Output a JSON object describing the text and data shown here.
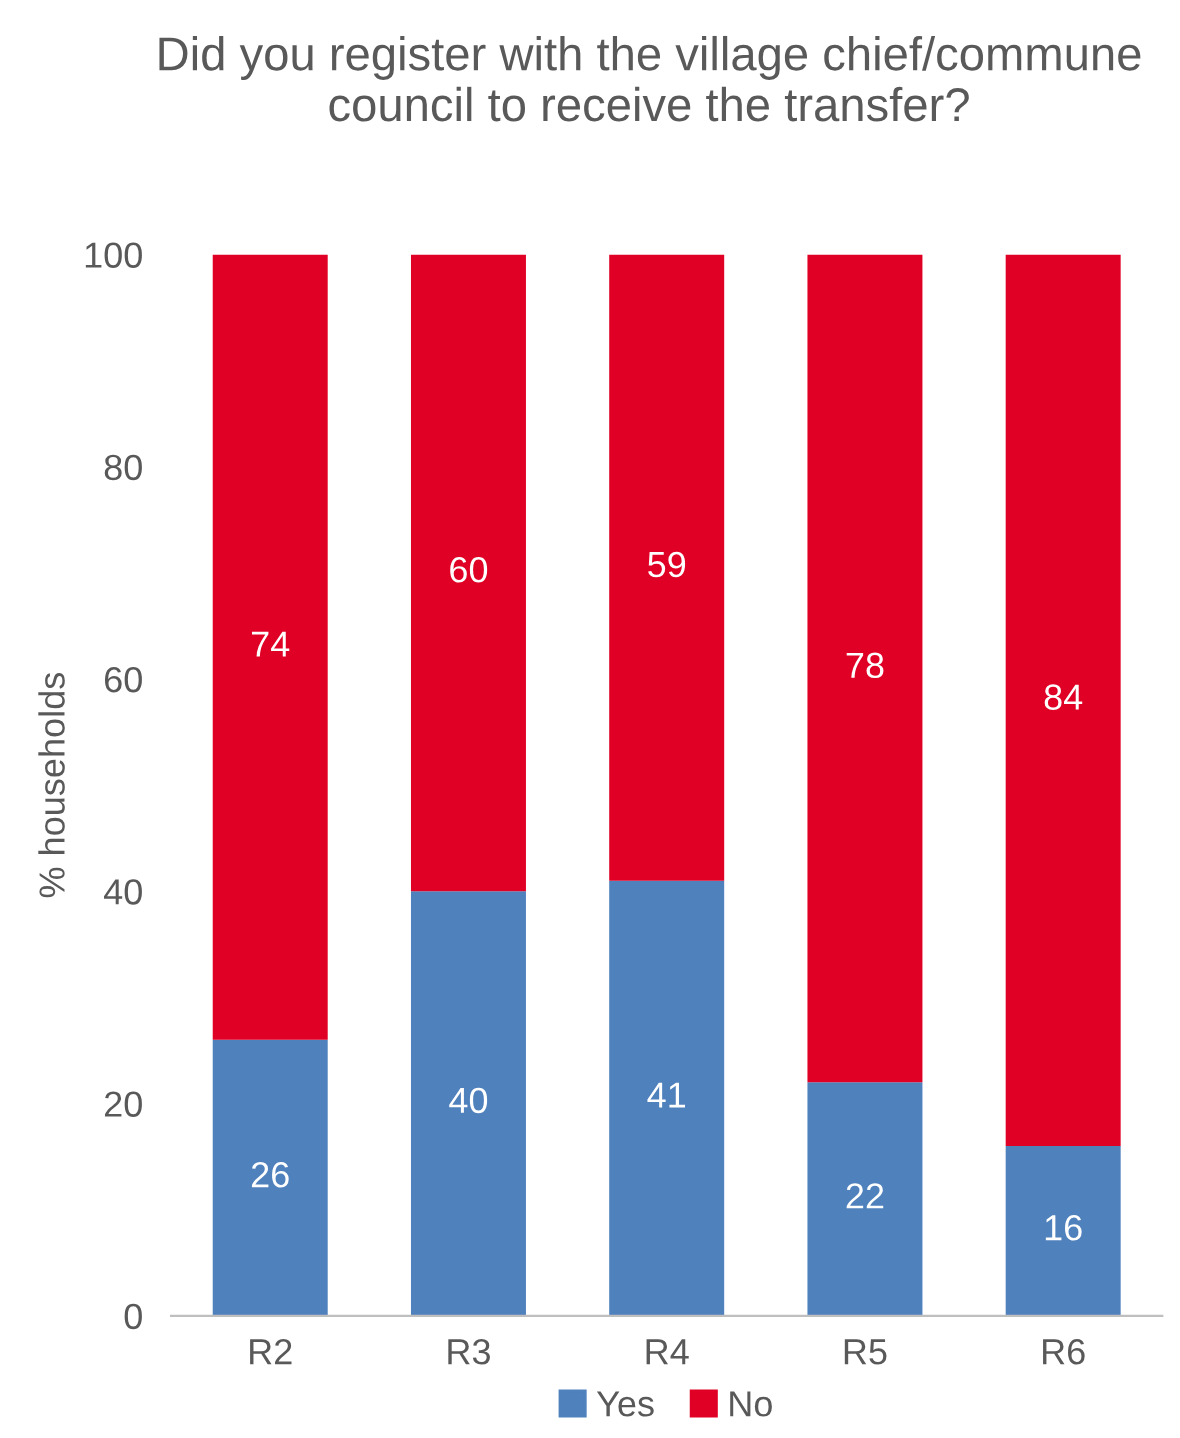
{
  "chart_data": {
    "type": "bar",
    "stacked": true,
    "title": "Did you register with the village chief/commune council to receive the transfer?",
    "ylabel": "% households",
    "categories": [
      "R2",
      "R3",
      "R4",
      "R5",
      "R6"
    ],
    "series": [
      {
        "name": "Yes",
        "color": "#4f81bd",
        "values": [
          26,
          40,
          41,
          22,
          16
        ]
      },
      {
        "name": "No",
        "color": "#e00025",
        "values": [
          74,
          60,
          59,
          78,
          84
        ]
      }
    ],
    "ylim": [
      0,
      100
    ],
    "yticks": [
      0,
      20,
      40,
      60,
      80,
      100
    ],
    "data_labels": true,
    "grid": false,
    "legend": "bottom"
  }
}
